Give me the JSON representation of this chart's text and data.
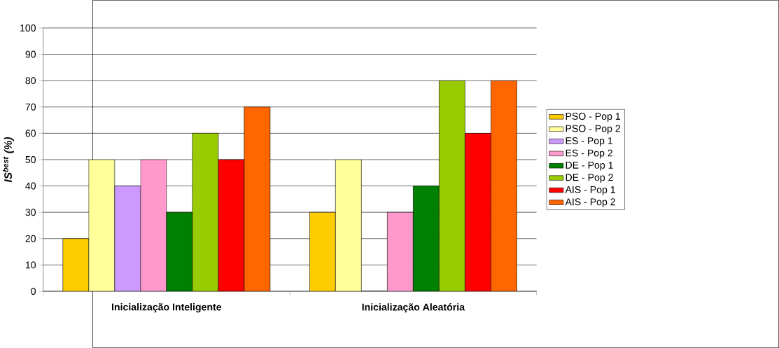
{
  "chart_data": {
    "type": "bar",
    "ylabel": "IS$^{best}$ (%)",
    "categories": [
      "Inicialização Inteligente",
      "Inicialização Aleatória"
    ],
    "series": [
      {
        "name": "PSO - Pop 1",
        "color": "#ffcc00",
        "values": [
          20,
          30
        ]
      },
      {
        "name": "PSO - Pop 2",
        "color": "#ffff99",
        "values": [
          50,
          50
        ]
      },
      {
        "name": "ES - Pop 1",
        "color": "#cc99ff",
        "values": [
          40,
          0
        ]
      },
      {
        "name": "ES - Pop 2",
        "color": "#ff99cc",
        "values": [
          50,
          30
        ]
      },
      {
        "name": "DE - Pop 1",
        "color": "#008000",
        "values": [
          30,
          40
        ]
      },
      {
        "name": "DE - Pop 2",
        "color": "#99cc00",
        "values": [
          60,
          80
        ]
      },
      {
        "name": "AIS - Pop 1",
        "color": "#ff0000",
        "values": [
          50,
          60
        ]
      },
      {
        "name": "AIS - Pop 2",
        "color": "#ff6600",
        "values": [
          70,
          80
        ]
      }
    ],
    "ylim": [
      0,
      100
    ],
    "yticks": [
      0,
      10,
      20,
      30,
      40,
      50,
      60,
      70,
      80,
      90,
      100
    ],
    "grid": "y",
    "legend": "right"
  }
}
